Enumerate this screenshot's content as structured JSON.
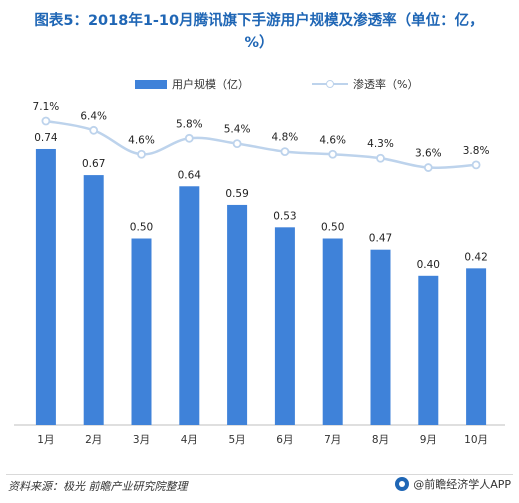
{
  "title": "图表5：2018年1-10月腾讯旗下手游用户规模及渗透率（单位：亿，%）",
  "legend": {
    "bar_label": "用户规模（亿）",
    "line_label": "渗透率（%）"
  },
  "source": "资料来源：极光 前瞻产业研究院整理",
  "brand": "@前瞻经济学人APP",
  "colors": {
    "bar": "#3f82d9",
    "line": "#bdd3ec",
    "title": "#1f66b5"
  },
  "chart_data": {
    "type": "bar",
    "categories": [
      "1月",
      "2月",
      "3月",
      "4月",
      "5月",
      "6月",
      "7月",
      "8月",
      "9月",
      "10月"
    ],
    "series": [
      {
        "name": "用户规模（亿）",
        "type": "bar",
        "values": [
          0.74,
          0.67,
          0.5,
          0.64,
          0.59,
          0.53,
          0.5,
          0.47,
          0.4,
          0.42
        ],
        "labels": [
          "0.74",
          "0.67",
          "0.50",
          "0.64",
          "0.59",
          "0.53",
          "0.50",
          "0.47",
          "0.40",
          "0.42"
        ]
      },
      {
        "name": "渗透率（%）",
        "type": "line",
        "values": [
          7.1,
          6.4,
          4.6,
          5.8,
          5.4,
          4.8,
          4.6,
          4.3,
          3.6,
          3.8
        ],
        "labels": [
          "7.1%",
          "6.4%",
          "4.6%",
          "5.8%",
          "5.4%",
          "4.8%",
          "4.6%",
          "4.3%",
          "3.6%",
          "3.8%"
        ]
      }
    ],
    "grid": false,
    "legend_position": "top"
  }
}
